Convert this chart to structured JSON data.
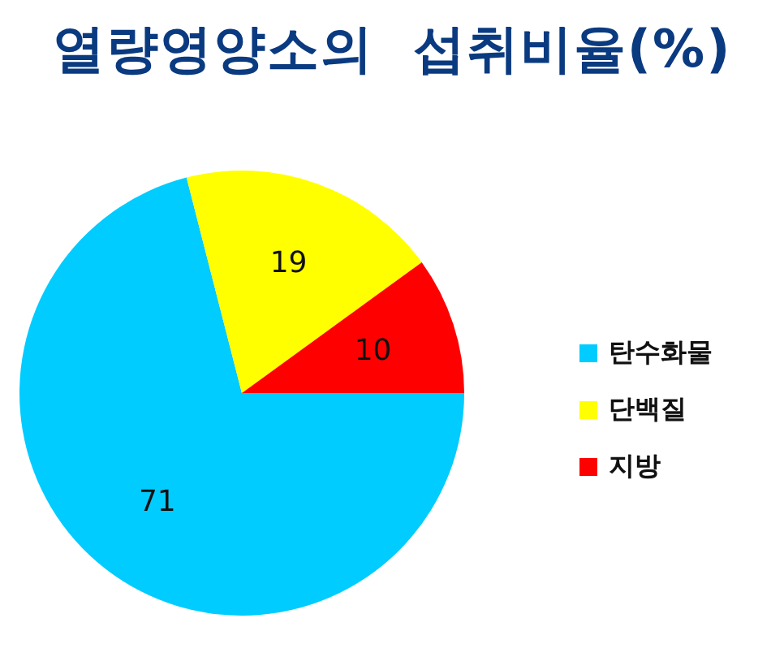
{
  "chart_data": {
    "type": "pie",
    "title": "열량영양소의 섭취비율(%)",
    "categories": [
      "탄수화물",
      "단백질",
      "지방"
    ],
    "values": [
      71,
      19,
      10
    ],
    "colors": [
      "#00ccff",
      "#ffff00",
      "#ff0000"
    ],
    "data_labels": true,
    "legend": "right"
  }
}
